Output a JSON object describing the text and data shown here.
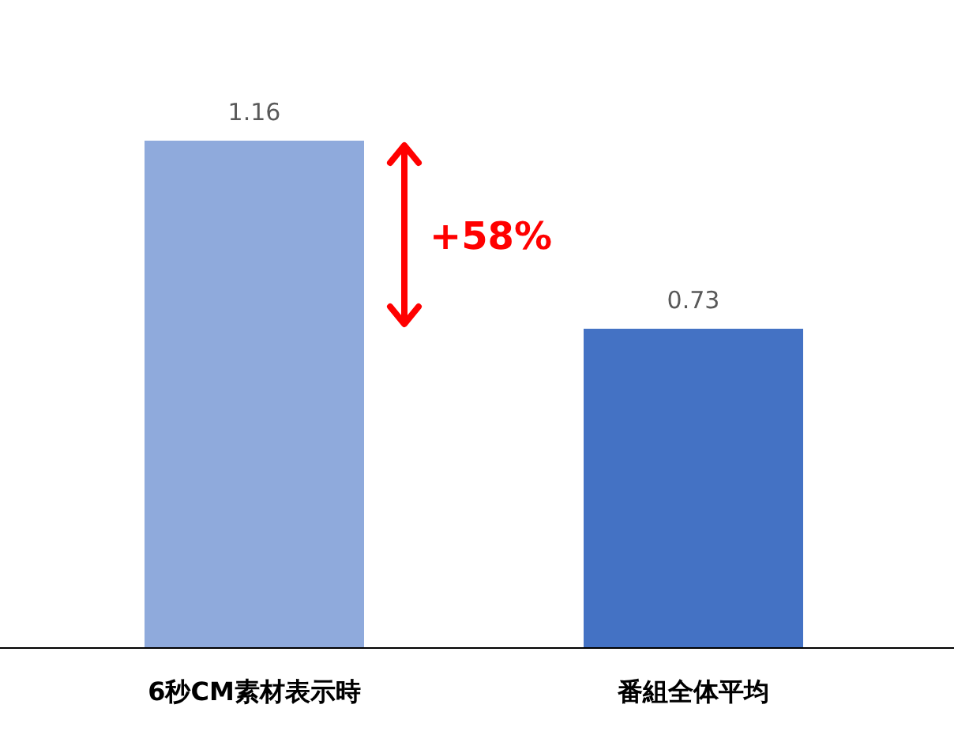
{
  "chart_data": {
    "type": "bar",
    "categories": [
      "6秒CM素材表示時",
      "番組全体平均"
    ],
    "values": [
      1.16,
      0.73
    ],
    "colors": [
      "#8faadc",
      "#4472c4"
    ],
    "data_labels": true,
    "annotations": [
      "+58%"
    ]
  }
}
